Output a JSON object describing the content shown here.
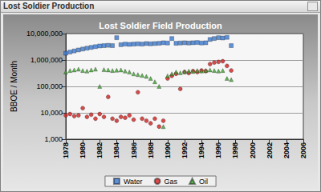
{
  "window": {
    "title": "Lost Soldier Production"
  },
  "chart_data": {
    "type": "scatter",
    "title": "Lost Soldier Field Production",
    "ylabel": "BBOE / Month",
    "log": "y",
    "grid": true,
    "legend": "bottom",
    "xlim": [
      1978,
      2006
    ],
    "xticks": [
      1978,
      1980,
      1982,
      1984,
      1986,
      1988,
      1990,
      1992,
      1994,
      1996,
      1998,
      2000,
      2002,
      2004,
      2006
    ],
    "ylim": [
      1000,
      10000000
    ],
    "yticks": [
      {
        "value": 1000,
        "label": "1,000"
      },
      {
        "value": 10000,
        "label": "10,000"
      },
      {
        "value": 100000,
        "label": "100,000"
      },
      {
        "value": 1000000,
        "label": "1,000,000"
      },
      {
        "value": 10000000,
        "label": "10,000,000"
      }
    ],
    "x": [
      1978,
      1978.5,
      1979,
      1979.5,
      1980,
      1980.5,
      1981,
      1981.5,
      1982,
      1982.5,
      1983,
      1983.5,
      1984,
      1984.5,
      1985,
      1985.5,
      1986,
      1986.5,
      1987,
      1987.5,
      1988,
      1988.5,
      1989,
      1989.5,
      1990,
      1990.5,
      1991,
      1991.5,
      1992,
      1992.5,
      1993,
      1993.5,
      1994,
      1994.5,
      1995,
      1995.5,
      1996,
      1996.5,
      1997,
      1997.5
    ],
    "series": [
      {
        "name": "Water",
        "color": "#3a78d0",
        "marker": "square",
        "values": [
          1800000,
          2000000,
          2200000,
          2400000,
          2600000,
          2800000,
          3000000,
          3200000,
          3400000,
          3500000,
          3600000,
          3500000,
          7000000,
          3800000,
          4000000,
          3900000,
          4000000,
          4100000,
          4000000,
          4200000,
          4100000,
          4200000,
          4300000,
          4500000,
          4400000,
          6500000,
          4300000,
          4400000,
          4500000,
          4400000,
          4500000,
          4600000,
          4400000,
          4500000,
          6000000,
          6500000,
          7000000,
          6800000,
          7200000,
          3500000
        ]
      },
      {
        "name": "Gas",
        "color": "#d02020",
        "marker": "circle",
        "values": [
          8000,
          9000,
          7500,
          8000,
          15000,
          7000,
          8500,
          6000,
          9000,
          7000,
          40000,
          6000,
          5000,
          7000,
          6500,
          8000,
          5500,
          60000,
          6000,
          5000,
          4000,
          6000,
          3000,
          5000,
          200000,
          250000,
          300000,
          80000,
          350000,
          320000,
          380000,
          350000,
          400000,
          380000,
          700000,
          800000,
          850000,
          900000,
          600000,
          400000
        ]
      },
      {
        "name": "Oil",
        "color": "#3fa02f",
        "marker": "triangle",
        "values": [
          350000,
          400000,
          420000,
          450000,
          400000,
          380000,
          420000,
          450000,
          100000,
          430000,
          420000,
          400000,
          410000,
          420000,
          380000,
          350000,
          300000,
          280000,
          260000,
          240000,
          200000,
          150000,
          100000,
          3000,
          250000,
          300000,
          350000,
          330000,
          360000,
          380000,
          370000,
          400000,
          380000,
          400000,
          420000,
          400000,
          380000,
          400000,
          200000,
          180000
        ]
      }
    ]
  }
}
